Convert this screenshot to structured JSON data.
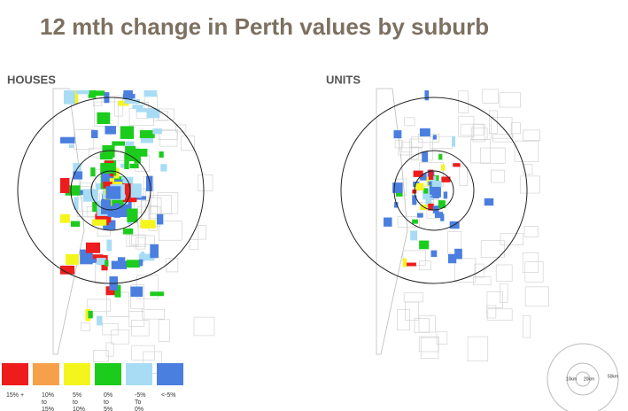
{
  "title": "12 mth change in Perth values by suburb",
  "maps": [
    {
      "label": "HOUSES"
    },
    {
      "label": "UNITS"
    }
  ],
  "legend": [
    {
      "lines": [
        "15% +"
      ],
      "color": "#ee1c1c"
    },
    {
      "lines": [
        "10%",
        "to",
        "15%"
      ],
      "color": "#f7a04a"
    },
    {
      "lines": [
        "5%",
        "to",
        "10%"
      ],
      "color": "#f5f51e"
    },
    {
      "lines": [
        "0%",
        "to",
        "5%"
      ],
      "color": "#1ccc1c"
    },
    {
      "lines": [
        "-5%",
        "To",
        "0%"
      ],
      "color": "#a8dcf5"
    },
    {
      "lines": [
        "<-5%"
      ],
      "color": "#4a7fe0"
    }
  ],
  "scale": {
    "inner": "10km",
    "middle": "20km",
    "outer": "50km"
  }
}
